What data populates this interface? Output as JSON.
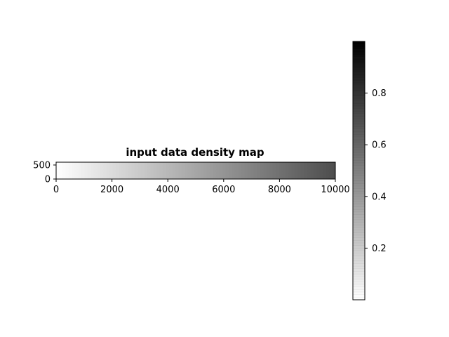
{
  "chart_data": {
    "type": "heatmap",
    "title": "input data density map",
    "xlabel": "",
    "ylabel": "",
    "x_range": [
      0,
      10000
    ],
    "y_range": [
      0,
      600
    ],
    "x_ticks": [
      "0",
      "2000",
      "4000",
      "6000",
      "8000",
      "10000"
    ],
    "x_tick_values": [
      0,
      2000,
      4000,
      6000,
      8000,
      10000
    ],
    "y_ticks": [
      "0",
      "500"
    ],
    "y_tick_values": [
      0,
      500
    ],
    "density": {
      "direction": "increases along x",
      "value_at_x_min": 0.0,
      "value_at_x_max": 0.7
    },
    "colormap": {
      "name": "gray_r",
      "low_color": "#ffffff",
      "high_color": "#000000",
      "range": [
        0,
        1
      ],
      "ticks": [
        "0.2",
        "0.4",
        "0.6",
        "0.8"
      ],
      "tick_values": [
        0.2,
        0.4,
        0.6,
        0.8
      ]
    },
    "grid": false,
    "legend": "colorbar right"
  }
}
